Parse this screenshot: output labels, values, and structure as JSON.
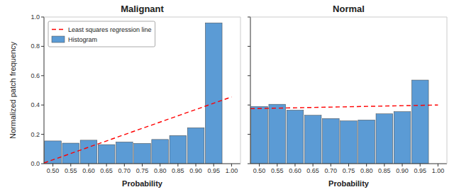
{
  "chart_data": [
    {
      "type": "bar",
      "title": "Malignant",
      "x_label": "Probability",
      "y_label": "Normalized patch frequency",
      "series": [
        {
          "name": "Least squares regression line",
          "type": "line",
          "color": "red",
          "line_style": "dashed",
          "x": [
            0.475,
            1.0
          ],
          "values": [
            0.005,
            0.455
          ]
        },
        {
          "name": "Histogram",
          "type": "bar",
          "color": "#5B9BD5",
          "x": [
            0.5,
            0.55,
            0.6,
            0.65,
            0.7,
            0.75,
            0.8,
            0.85,
            0.9,
            0.95
          ],
          "values": [
            0.155,
            0.14,
            0.16,
            0.13,
            0.148,
            0.138,
            0.165,
            0.192,
            0.245,
            0.96
          ]
        }
      ],
      "xlim": [
        0.475,
        1.025
      ],
      "xticks": [
        {
          "value": 0.5,
          "label": "0.50"
        },
        0.55,
        {
          "value": 0.6,
          "label": "0.60"
        },
        0.65,
        {
          "value": 0.7,
          "label": "0.70"
        },
        0.75,
        {
          "value": 0.8,
          "label": "0.80"
        },
        0.85,
        {
          "value": 0.9,
          "label": "0.90"
        },
        0.95,
        {
          "value": 1.0,
          "label": "1.00"
        }
      ],
      "ylim": [
        0.0,
        1.0
      ],
      "yticks": [
        {
          "value": 0.0,
          "label": "0.0"
        },
        0.2,
        0.4,
        0.6,
        0.8,
        {
          "value": 1.0,
          "label": "1.0"
        }
      ],
      "grid": false,
      "legend": "upper-left"
    },
    {
      "type": "bar",
      "title": "Normal",
      "x_label": "Probability",
      "series": [
        {
          "type": "line",
          "color": "red",
          "line_style": "dashed",
          "x": [
            0.475,
            1.0
          ],
          "values": [
            0.375,
            0.4
          ]
        },
        {
          "type": "bar",
          "color": "#5B9BD5",
          "x": [
            0.5,
            0.55,
            0.6,
            0.65,
            0.7,
            0.75,
            0.8,
            0.85,
            0.9,
            0.95
          ],
          "values": [
            0.39,
            0.405,
            0.365,
            0.33,
            0.308,
            0.292,
            0.298,
            0.34,
            0.355,
            0.57
          ]
        }
      ],
      "xlim": [
        0.475,
        1.025
      ],
      "xticks": [
        {
          "value": 0.5,
          "label": "0.50"
        },
        0.55,
        {
          "value": 0.6,
          "label": "0.60"
        },
        0.65,
        {
          "value": 0.7,
          "label": "0.70"
        },
        0.75,
        {
          "value": 0.8,
          "label": "0.80"
        },
        0.85,
        {
          "value": 0.9,
          "label": "0.90"
        },
        0.95,
        {
          "value": 1.0,
          "label": "1.00"
        }
      ],
      "ylim": [
        0.0,
        1.0
      ],
      "yticks": [
        0.0,
        0.2,
        0.4,
        0.6,
        0.8,
        1.0
      ],
      "grid": false,
      "tick_labels": "x"
    }
  ]
}
